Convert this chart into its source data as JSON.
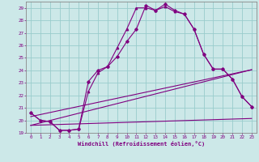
{
  "xlabel": "Windchill (Refroidissement éolien,°C)",
  "background_color": "#cce8e8",
  "line_color": "#800080",
  "xlim": [
    -0.5,
    23.5
  ],
  "ylim": [
    19,
    29.5
  ],
  "xticks": [
    0,
    1,
    2,
    3,
    4,
    5,
    6,
    7,
    8,
    9,
    10,
    11,
    12,
    13,
    14,
    15,
    16,
    17,
    18,
    19,
    20,
    21,
    22,
    23
  ],
  "yticks": [
    19,
    20,
    21,
    22,
    23,
    24,
    25,
    26,
    27,
    28,
    29
  ],
  "grid_color": "#99cccc",
  "curve1_x": [
    0,
    1,
    2,
    3,
    4,
    5,
    6,
    7,
    8,
    9,
    10,
    11,
    12,
    13,
    14,
    15,
    16,
    17,
    18,
    19,
    20,
    21,
    22,
    23
  ],
  "curve1_y": [
    20.6,
    20.0,
    19.9,
    19.2,
    19.2,
    19.3,
    23.1,
    24.0,
    24.3,
    25.1,
    26.3,
    27.3,
    29.2,
    28.8,
    29.3,
    28.8,
    28.5,
    27.3,
    25.3,
    24.1,
    24.1,
    23.3,
    21.9,
    21.1
  ],
  "curve2_x": [
    0,
    1,
    2,
    3,
    4,
    5,
    6,
    7,
    8,
    9,
    10,
    11,
    12,
    13,
    14,
    15,
    16,
    17,
    18,
    19,
    20,
    21,
    22,
    23
  ],
  "curve2_y": [
    20.6,
    20.0,
    19.9,
    19.2,
    19.2,
    19.3,
    22.3,
    23.8,
    24.3,
    25.8,
    27.3,
    29.0,
    29.0,
    28.8,
    29.1,
    28.7,
    28.5,
    27.3,
    25.3,
    24.1,
    24.1,
    23.3,
    21.9,
    21.1
  ],
  "line1_x": [
    0,
    23
  ],
  "line1_y": [
    19.6,
    24.05
  ],
  "line2_x": [
    0,
    23
  ],
  "line2_y": [
    20.3,
    24.05
  ],
  "line3_x": [
    0,
    23
  ],
  "line3_y": [
    19.6,
    20.15
  ]
}
